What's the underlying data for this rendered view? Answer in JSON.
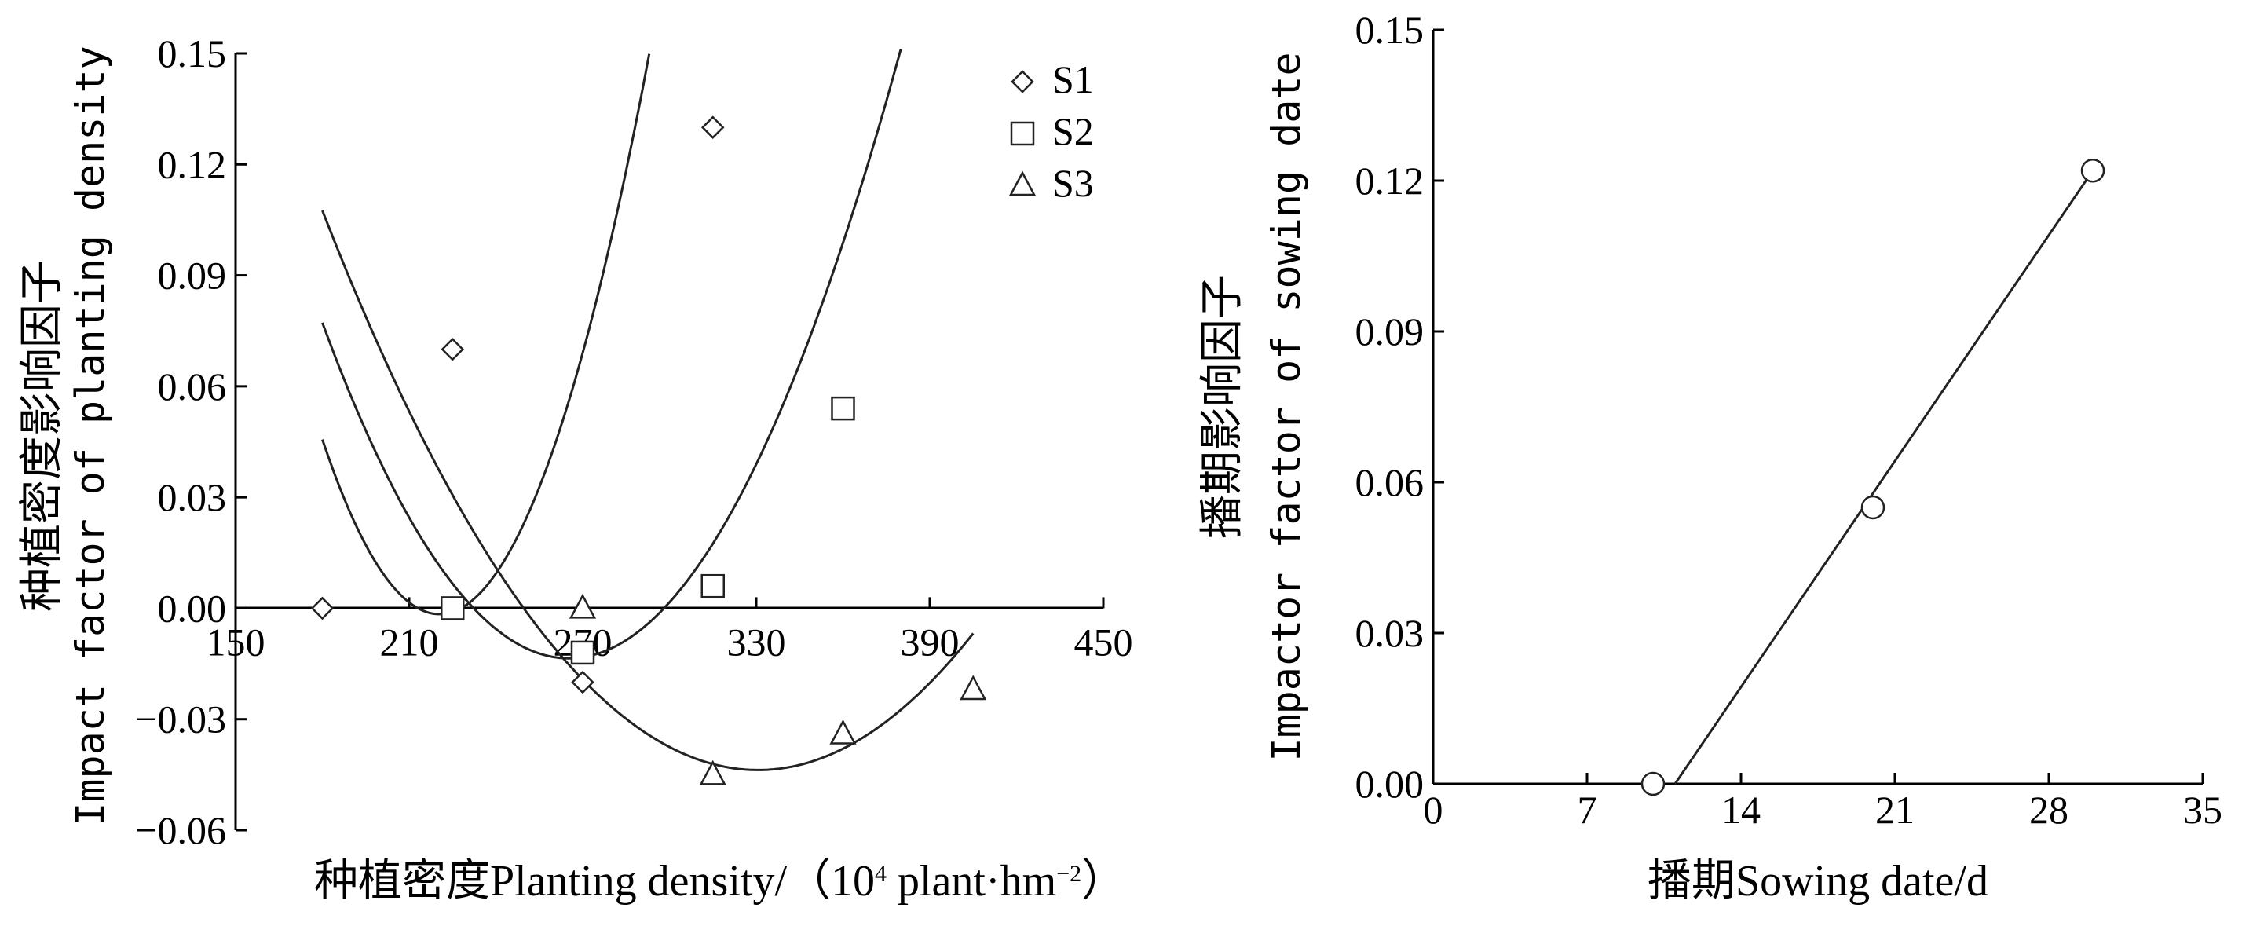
{
  "chart_data": [
    {
      "type": "scatter",
      "xlim": [
        150,
        450
      ],
      "ylim": [
        -0.06,
        0.15
      ],
      "xticks": [
        "150",
        "210",
        "270",
        "330",
        "390",
        "450"
      ],
      "yticks": [
        "0.15",
        "0.12",
        "0.09",
        "0.06",
        "0.03",
        "0.00",
        "−0.03",
        "−0.06"
      ],
      "xlabel": "种植密度Planting density/（10",
      "xlabel_sup": "4",
      "xlabel_mid": " plant·hm",
      "xlabel_sup2": "−2",
      "xlabel_end": "）",
      "ylabel_line1": "种植密度影响因子",
      "ylabel_line2": "Impact factor of planting density",
      "legend_position": "top-right",
      "series": [
        {
          "name": "S1",
          "marker": "diamond",
          "points": [
            [
              180,
              0.0
            ],
            [
              225,
              0.07
            ],
            [
              270,
              -0.02
            ],
            [
              315,
              0.13
            ]
          ],
          "fit": [
            2.88e-05,
            -0.0127,
            1.3985
          ],
          "fit_range": [
            180,
            335
          ]
        },
        {
          "name": "S2",
          "marker": "square",
          "points": [
            [
              225,
              0.0
            ],
            [
              270,
              -0.012
            ],
            [
              315,
              0.006
            ],
            [
              360,
              0.054
            ]
          ],
          "fit": [
            1.25e-05,
            -0.00663,
            0.8656
          ],
          "fit_range": [
            180,
            405
          ]
        },
        {
          "name": "S3",
          "marker": "triangle",
          "points": [
            [
              270,
              0.0
            ],
            [
              315,
              -0.045
            ],
            [
              360,
              -0.034
            ],
            [
              405,
              -0.022
            ]
          ],
          "fit": [
            6.67e-06,
            -0.00441,
            0.6852
          ],
          "fit_range": [
            180,
            405
          ]
        }
      ]
    },
    {
      "type": "scatter",
      "xlim": [
        0,
        35
      ],
      "ylim": [
        0,
        0.15
      ],
      "xticks": [
        "0",
        "7",
        "14",
        "21",
        "28",
        "35"
      ],
      "yticks": [
        "0.15",
        "0.12",
        "0.09",
        "0.06",
        "0.03",
        "0.00"
      ],
      "xlabel": "播期Sowing date/d",
      "ylabel_line1": "播期影响因子",
      "ylabel_line2": "Impactor factor of sowing date",
      "series": [
        {
          "marker": "circle",
          "points": [
            [
              10,
              0.0
            ],
            [
              20,
              0.055
            ],
            [
              30,
              0.122
            ]
          ],
          "fit_line": [
            [
              11,
              0.0
            ],
            [
              30,
              0.122
            ]
          ]
        }
      ]
    }
  ]
}
